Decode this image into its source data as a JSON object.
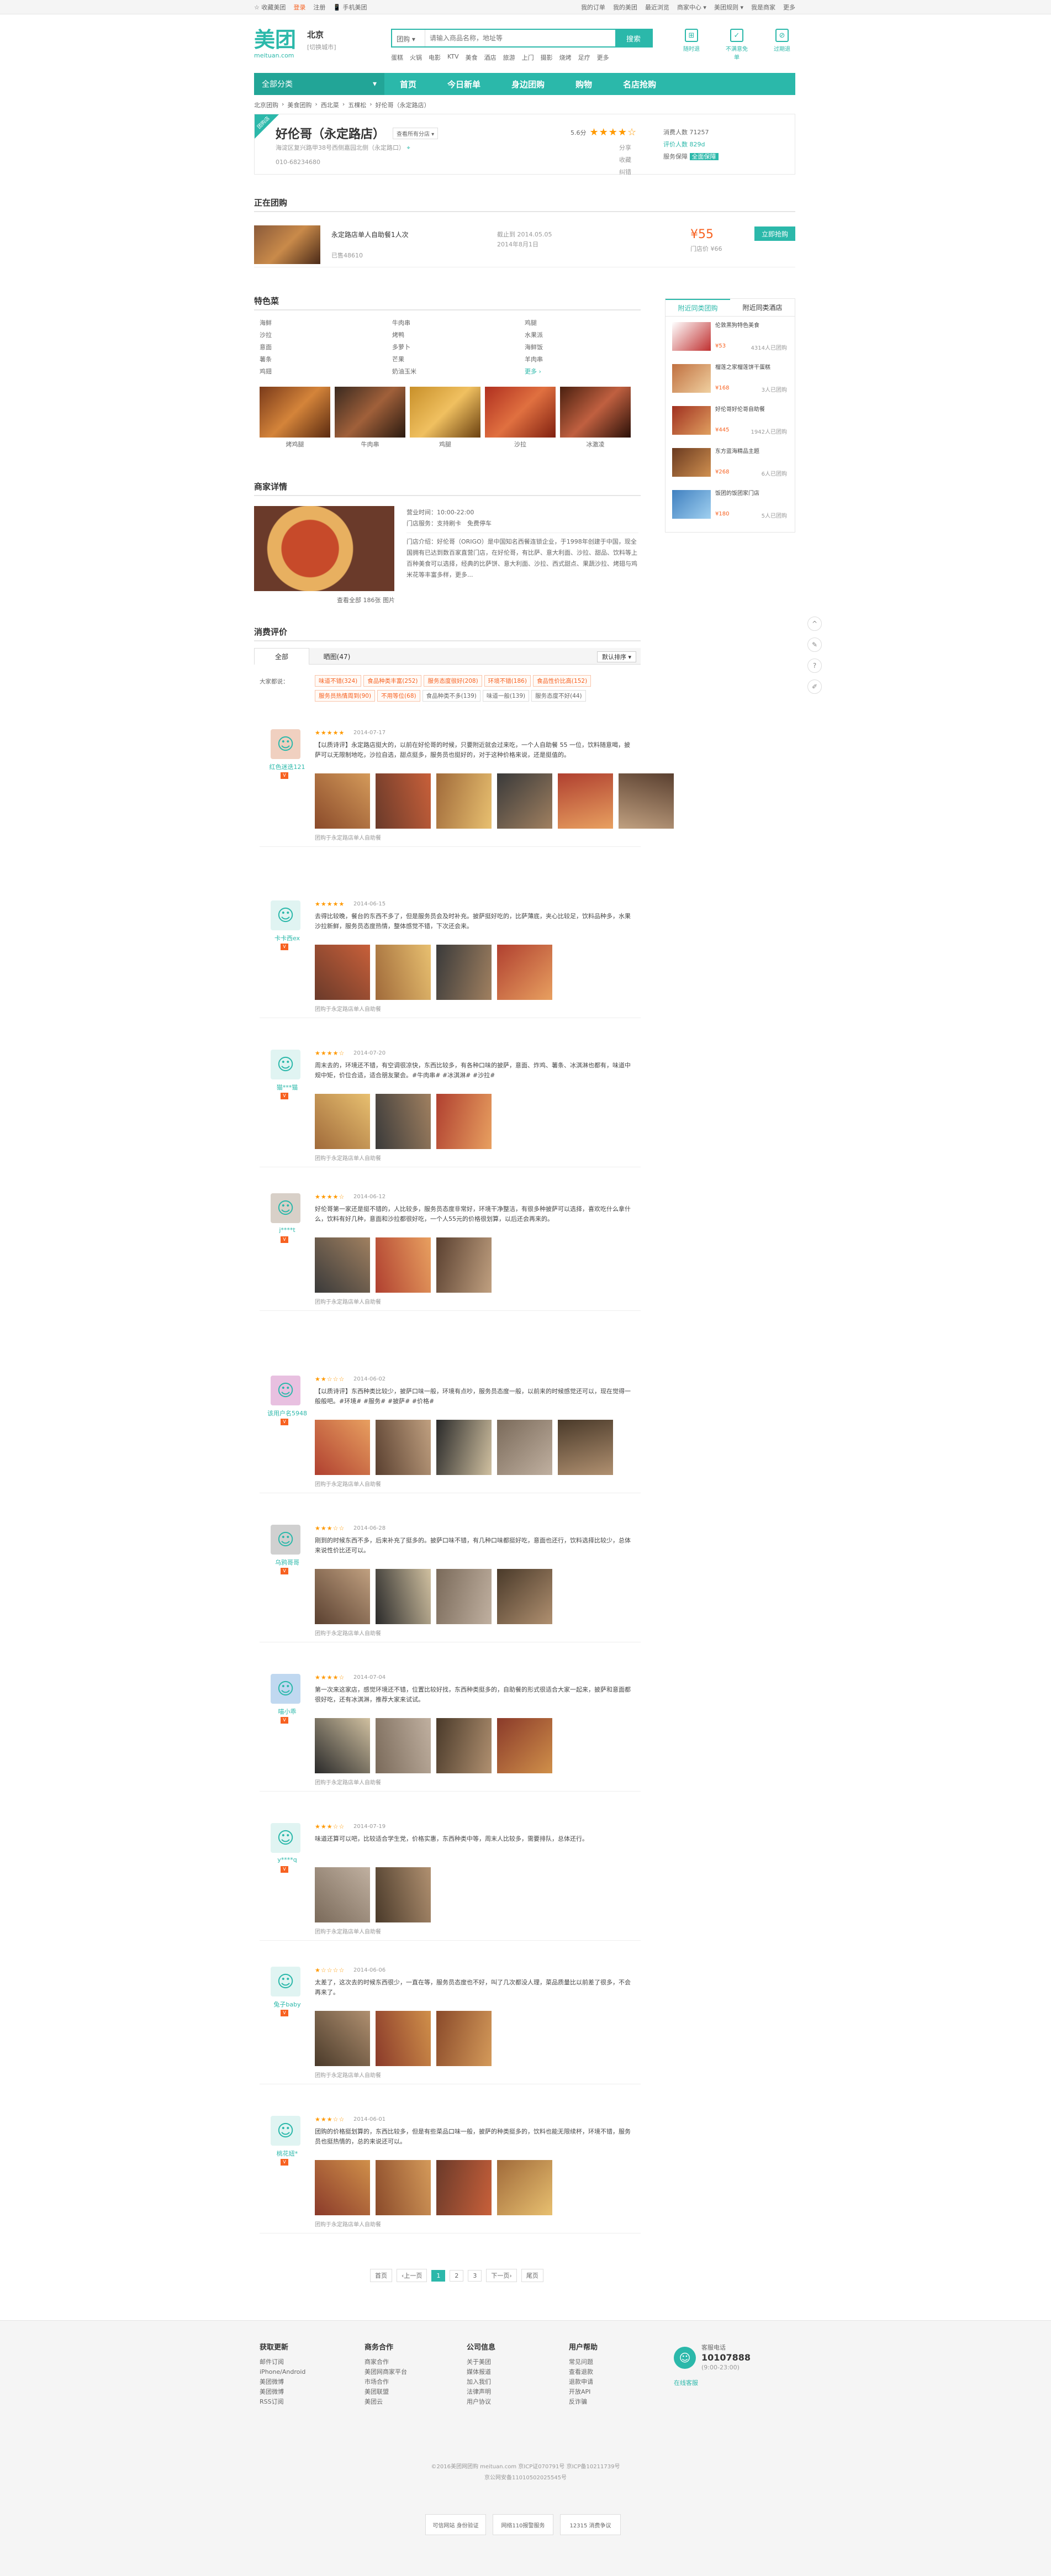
{
  "topbar": {
    "left": [
      "☆ 收藏美团",
      "登录",
      "注册",
      "📱 手机美团"
    ],
    "right": [
      "我的订单",
      "我的美团",
      "最近浏览",
      "商家中心 ▾",
      "美团规则 ▾",
      "我是商家",
      "更多"
    ]
  },
  "header": {
    "logo": "美团",
    "logo_sub": "meituan.com",
    "city": "北京",
    "city_switch": "[切换城市]",
    "search_select": "团购 ▾",
    "search_placeholder": "请输入商品名称，地址等",
    "search_btn": "搜索",
    "hotwords": [
      "蛋糕",
      "火锅",
      "电影",
      "KTV",
      "美食",
      "酒店",
      "旅游",
      "上门",
      "摄影",
      "烧烤",
      "足疗",
      "更多"
    ],
    "icons": [
      {
        "g": "⊞",
        "l": "随时退"
      },
      {
        "g": "✓",
        "l": "不满意免单"
      },
      {
        "g": "⊘",
        "l": "过期退"
      }
    ]
  },
  "nav": {
    "all": "全部分类",
    "items": [
      "首页",
      "今日新单",
      "身边团购",
      "购物",
      "名店抢购"
    ]
  },
  "crumb": [
    "北京团购",
    "美食团购",
    "西北菜",
    "五棵松",
    "好伦哥（永定路店）"
  ],
  "poi": {
    "ribbon": "团购店",
    "name": "好伦哥（永定路店）",
    "tag": "查看所有分店 ▾",
    "address": "海淀区复兴路甲38号西侧嘉园北侧（永定路口）",
    "phone": "010-68234680",
    "score_label": "5.6分",
    "score_stars": "★★★★☆",
    "links": [
      "分享",
      "收藏",
      "纠错"
    ],
    "consume_count": "消费人数 71257",
    "rating_count": "评价人数 829d",
    "service": "服务保障 全面保障",
    "service_badge": "全面保障"
  },
  "deals_title": "正在团购",
  "deal": {
    "title": "永定路店单人自助餐1人次",
    "sold": "已售48610",
    "dates": [
      "截止到 2014.05.05",
      "2014年8月1日"
    ],
    "price": "¥55",
    "original": "门店价 ¥66",
    "buy": "立即抢购"
  },
  "dishes_title": "特色菜",
  "dishes": [
    "海鲜",
    "牛肉串",
    "鸡腿",
    "沙拉",
    "烤鸭",
    "水果派",
    "意面",
    "多萝卜",
    "海鲜饭",
    "薯条",
    "芒果",
    "羊肉串",
    "鸡翅",
    "奶油玉米",
    "更多 ›"
  ],
  "dish_imgs": [
    "烤鸡腿",
    "牛肉串",
    "鸡腿",
    "沙拉",
    "冰激凌"
  ],
  "detail": {
    "title": "商家详情",
    "hours": "营业时间：10:00-22:00",
    "wifi": "门店服务：支持刷卡　免费停车",
    "intro": "门店介绍：好伦哥（ORIGO）是中国知名西餐连锁企业，于1998年创建于中国，现全国拥有已达到数百家直营门店，在好伦哥，有比萨、意大利面、沙拉、甜品、饮料等上百种美食可以选择，经典的比萨饼、意大利面、沙拉、西式甜点、果蔬沙拉、烤翅与鸡米花等丰富多样，更多...",
    "caption": "查看全部 186张 图片"
  },
  "reviews_title": "消费评价",
  "tabs": [
    "全部",
    "晒图(47)"
  ],
  "sort": "默认排序 ▾",
  "tags_label": "大家都说：",
  "tags": [
    {
      "t": "味道不错(324)",
      "h": true
    },
    {
      "t": "食品种类丰富(252)",
      "h": true
    },
    {
      "t": "服务态度很好(208)",
      "h": true
    },
    {
      "t": "环境不错(186)",
      "h": true
    },
    {
      "t": "食品性价比高(152)",
      "h": true
    },
    {
      "t": "服务员热情周到(90)",
      "h": true
    },
    {
      "t": "不用等位(68)",
      "h": true
    },
    {
      "t": "食品种类不多(139)",
      "h": false
    },
    {
      "t": "味道一般(139)",
      "h": false
    },
    {
      "t": "服务态度不好(44)",
      "h": false
    }
  ],
  "reviews": [
    {
      "user": "红色迷迭121",
      "stars": "★★★★★",
      "date": "2014-07-17",
      "text": "【以质诗评】永定路店挺大的，以前在好伦哥的时候，只要附近就会过来吃，一个人自助餐 55 一位，饮料随意喝，披萨可以无限制地吃，沙拉自选，甜点挺多，服务员也挺好的，对于这种价格来说，还是挺值的。",
      "from": "团购于永定路店单人自助餐"
    },
    {
      "user": "卡卡西ex",
      "stars": "★★★★★",
      "date": "2014-06-15",
      "text": "去得比较晚，餐台的东西不多了，但是服务员会及时补充。披萨挺好吃的，比萨薄底，夹心比较足，饮料品种多，水果沙拉新鲜，服务员态度热情，整体感觉不错，下次还会来。",
      "from": "团购于永定路店单人自助餐"
    },
    {
      "user": "猫***猫",
      "stars": "★★★★☆",
      "date": "2014-07-20",
      "text": "周末去的，环境还不错，有空调很凉快，东西比较多，有各种口味的披萨，意面、炸鸡、薯条、冰淇淋也都有，味道中规中矩，价位合适，适合朋友聚会。#牛肉串# #冰淇淋# #沙拉#",
      "from": "团购于永定路店单人自助餐"
    },
    {
      "user": "j****t",
      "stars": "★★★★☆",
      "date": "2014-06-12",
      "text": "好伦哥第一家还是挺不错的，人比较多，服务员态度非常好，环境干净整洁，有很多种披萨可以选择，喜欢吃什么拿什么，饮料有好几种，意面和沙拉都很好吃，一个人55元的价格很划算，以后还会再来的。",
      "from": "团购于永定路店单人自助餐"
    },
    {
      "user": "该用户名5948",
      "stars": "★★☆☆☆",
      "date": "2014-06-02",
      "text": "【以质诗评】东西种类比较少，披萨口味一般，环境有点吵，服务员态度一般，以前来的时候感觉还可以，现在觉得一般般吧。#环境# #服务# #披萨# #价格#",
      "from": "团购于永定路店单人自助餐"
    },
    {
      "user": "乌鸦哥哥",
      "stars": "★★★☆☆",
      "date": "2014-06-28",
      "text": "刚到的时候东西不多，后来补充了挺多的。披萨口味不错，有几种口味都挺好吃，意面也还行，饮料选择比较少，总体来说性价比还可以。",
      "from": "团购于永定路店单人自助餐"
    },
    {
      "user": "喵小乖",
      "stars": "★★★★☆",
      "date": "2014-07-04",
      "text": "第一次来这家店，感觉环境还不错，位置比较好找，东西种类挺多的，自助餐的形式很适合大家一起来，披萨和意面都很好吃，还有冰淇淋，推荐大家来试试。",
      "from": "团购于永定路店单人自助餐"
    },
    {
      "user": "y****q",
      "stars": "★★★☆☆",
      "date": "2014-07-19",
      "text": "味道还算可以吧，比较适合学生党，价格实惠，东西种类中等，周末人比较多，需要排队，总体还行。",
      "from": "团购于永定路店单人自助餐"
    },
    {
      "user": "兔子baby",
      "stars": "★☆☆☆☆",
      "date": "2014-06-06",
      "text": "太差了，这次去的时候东西很少，一直在等，服务员态度也不好，叫了几次都没人理，菜品质量比以前差了很多，不会再来了。",
      "from": "团购于永定路店单人自助餐"
    },
    {
      "user": "桃花妞*",
      "stars": "★★★☆☆",
      "date": "2014-06-01",
      "text": "团购的价格挺划算的，东西比较多，但是有些菜品口味一般，披萨的种类挺多的，饮料也能无限续杯，环境不错，服务员也挺热情的，总的来说还可以。",
      "from": "团购于永定路店单人自助餐"
    }
  ],
  "pager": [
    "首页",
    "‹上一页",
    "1",
    "2",
    "3",
    "下一页›",
    "尾页"
  ],
  "side": {
    "tabs": [
      "附近同类团购",
      "附近同类酒店"
    ],
    "items": [
      {
        "t": "伦敦黑狗特色美食",
        "p": "¥53",
        "s": "4314人已团购"
      },
      {
        "t": "榴莲之家榴莲饼干蛋糕",
        "p": "¥168",
        "s": "3人已团购"
      },
      {
        "t": "好伦哥好伦哥自助餐",
        "p": "¥445",
        "s": "1942人已团购"
      },
      {
        "t": "东方蓝海精品主题",
        "p": "¥268",
        "s": "6人已团购"
      },
      {
        "t": "饭团的饭团家门店",
        "p": "¥180",
        "s": "5人已团购"
      }
    ]
  },
  "floatbar": [
    "^",
    "✎",
    "?",
    "✐"
  ],
  "footer": {
    "cols": [
      {
        "h": "获取更新",
        "items": [
          "邮件订阅",
          "iPhone/Android",
          "美团微博",
          "美团微博",
          "RSS订阅"
        ]
      },
      {
        "h": "商务合作",
        "items": [
          "商家合作",
          "美团网商家平台",
          "市场合作",
          "美团联盟",
          "美团云"
        ]
      },
      {
        "h": "公司信息",
        "items": [
          "关于美团",
          "媒体报道",
          "加入我们",
          "法律声明",
          "用户协议"
        ]
      },
      {
        "h": "用户帮助",
        "items": [
          "常见问题",
          "查看退款",
          "退款申请",
          "开放API",
          "反诈骗"
        ]
      }
    ],
    "hotline_title": "客服电话",
    "hotline": "10107888",
    "hotline_time": "(9:00-23:00)",
    "contact": "在线客服",
    "copyright": [
      "©2016美团网团购 meituan.com 京ICP证070791号 京ICP备10211739号",
      "京公网安备11010502025545号"
    ],
    "badges": [
      "可信网站 身份验证",
      "网络110报警服务",
      "12315 消费争议"
    ]
  }
}
